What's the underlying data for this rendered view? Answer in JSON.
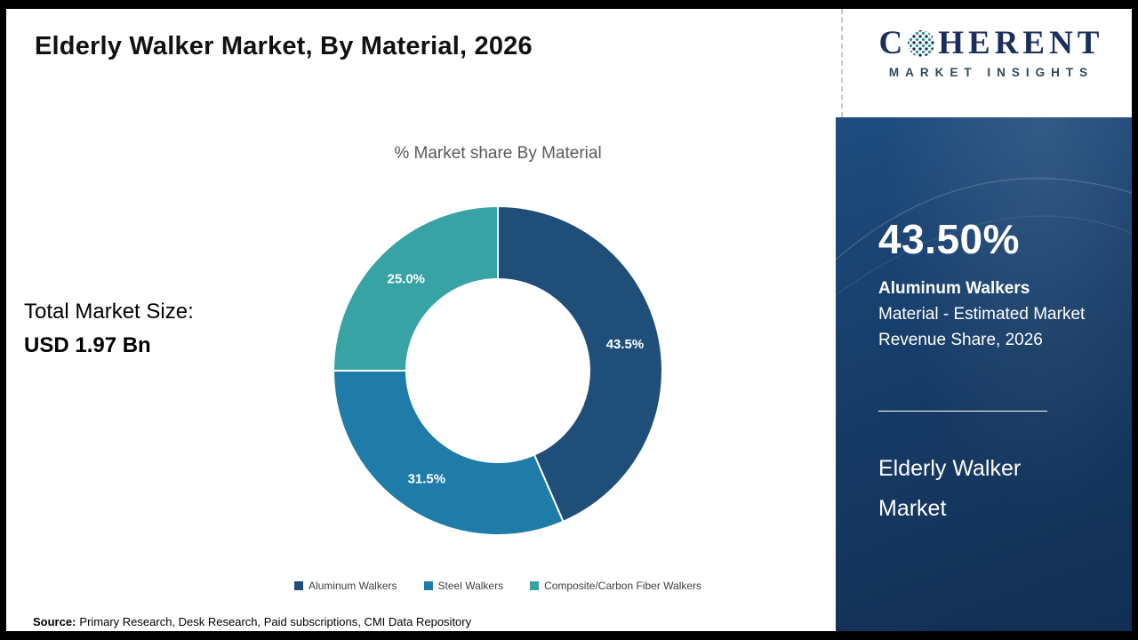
{
  "page": {
    "title": "Elderly Walker Market, By Material, 2026",
    "source_label": "Source:",
    "source_text": "Primary Research, Desk Research, Paid subscriptions, CMI Data Repository"
  },
  "logo": {
    "brand_c": "C",
    "brand_rest": "HERENT",
    "subtitle": "MARKET INSIGHTS"
  },
  "left_panel": {
    "total_label": "Total Market Size:",
    "total_value": "USD 1.97 Bn"
  },
  "chart_data": {
    "type": "pie",
    "subtype": "donut",
    "title": "% Market share By Material",
    "categories": [
      "Aluminum Walkers",
      "Steel Walkers",
      "Composite/Carbon Fiber Walkers"
    ],
    "values": [
      43.5,
      31.5,
      25.0
    ],
    "labels": [
      "43.5%",
      "31.5%",
      "25.0%"
    ],
    "colors": [
      "#1f4e79",
      "#1f7ba8",
      "#38a3a5"
    ],
    "start_angle_deg": 0,
    "direction": "clockwise",
    "legend_position": "bottom"
  },
  "sidebar": {
    "stat_value": "43.50%",
    "stat_bold": "Aluminum Walkers",
    "stat_desc": "Material - Estimated Market Revenue Share, 2026",
    "footer": "Elderly Walker Market"
  },
  "colors": {
    "sidebar_background": "#173c68",
    "brand_navy": "#1c2e5e",
    "accent_teal": "#2a9d8f"
  }
}
